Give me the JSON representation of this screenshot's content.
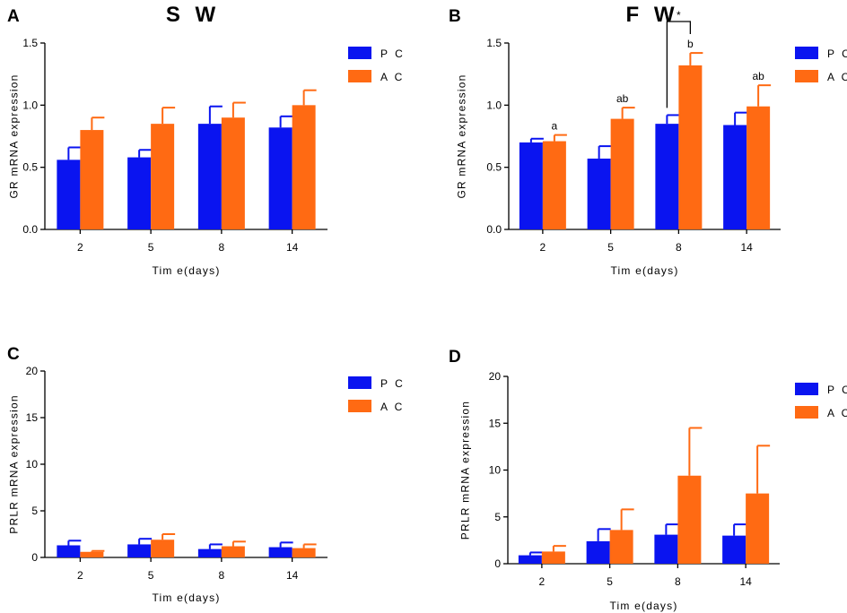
{
  "colors": {
    "PC": "#0a14f0",
    "AC": "#ff6a13",
    "axis": "#000000"
  },
  "chart_data": [
    {
      "panel": "A",
      "type": "bar",
      "title": "S W",
      "xlabel": "Tim e(days)",
      "ylabel": "GR mRNA expression",
      "ylim": [
        0,
        1.5
      ],
      "yticks": [
        "0.0",
        "0.5",
        "1.0",
        "1.5"
      ],
      "categories": [
        "2",
        "5",
        "8",
        "14"
      ],
      "legend": [
        "P C",
        "A C"
      ],
      "series": [
        {
          "name": "PC",
          "values": [
            0.56,
            0.58,
            0.85,
            0.82
          ],
          "errors": [
            0.1,
            0.06,
            0.14,
            0.09
          ]
        },
        {
          "name": "AC",
          "values": [
            0.8,
            0.85,
            0.9,
            1.0
          ],
          "errors": [
            0.1,
            0.13,
            0.12,
            0.12
          ]
        }
      ],
      "annotations": []
    },
    {
      "panel": "B",
      "type": "bar",
      "title": "F W",
      "xlabel": "Tim e(days)",
      "ylabel": "GR mRNA expression",
      "ylim": [
        0,
        1.5
      ],
      "yticks": [
        "0.0",
        "0.5",
        "1.0",
        "1.5"
      ],
      "categories": [
        "2",
        "5",
        "8",
        "14"
      ],
      "legend": [
        "P C",
        "A C"
      ],
      "series": [
        {
          "name": "PC",
          "values": [
            0.7,
            0.57,
            0.85,
            0.84
          ],
          "errors": [
            0.03,
            0.1,
            0.07,
            0.1
          ]
        },
        {
          "name": "AC",
          "values": [
            0.71,
            0.89,
            1.32,
            0.99
          ],
          "errors": [
            0.05,
            0.09,
            0.1,
            0.17
          ]
        }
      ],
      "annotations": [
        {
          "series": "AC",
          "category": "2",
          "text": "a"
        },
        {
          "series": "AC",
          "category": "5",
          "text": "ab"
        },
        {
          "series": "AC",
          "category": "8",
          "text": "b"
        },
        {
          "series": "AC",
          "category": "14",
          "text": "ab"
        }
      ],
      "significance": {
        "between": [
          "PC",
          "AC"
        ],
        "category": "8",
        "text": "*"
      }
    },
    {
      "panel": "C",
      "type": "bar",
      "title": "",
      "xlabel": "Tim e(days)",
      "ylabel": "PRLR mRNA expression",
      "ylim": [
        0,
        20
      ],
      "yticks": [
        "0",
        "5",
        "10",
        "15",
        "20"
      ],
      "categories": [
        "2",
        "5",
        "8",
        "14"
      ],
      "legend": [
        "P C",
        "A C"
      ],
      "series": [
        {
          "name": "PC",
          "values": [
            1.3,
            1.4,
            0.9,
            1.1
          ],
          "errors": [
            0.5,
            0.6,
            0.5,
            0.5
          ]
        },
        {
          "name": "AC",
          "values": [
            0.6,
            1.9,
            1.2,
            1.0
          ],
          "errors": [
            0.1,
            0.6,
            0.5,
            0.4
          ]
        }
      ],
      "annotations": []
    },
    {
      "panel": "D",
      "type": "bar",
      "title": "",
      "xlabel": "Tim e(days)",
      "ylabel": "PRLR mRNA expression",
      "ylim": [
        0,
        20
      ],
      "yticks": [
        "0",
        "5",
        "10",
        "15",
        "20"
      ],
      "categories": [
        "2",
        "5",
        "8",
        "14"
      ],
      "legend": [
        "P C",
        "A C"
      ],
      "series": [
        {
          "name": "PC",
          "values": [
            0.9,
            2.4,
            3.1,
            3.0
          ],
          "errors": [
            0.3,
            1.3,
            1.1,
            1.2
          ]
        },
        {
          "name": "AC",
          "values": [
            1.3,
            3.6,
            9.4,
            7.5
          ],
          "errors": [
            0.6,
            2.2,
            5.1,
            5.1
          ]
        }
      ],
      "annotations": []
    }
  ]
}
